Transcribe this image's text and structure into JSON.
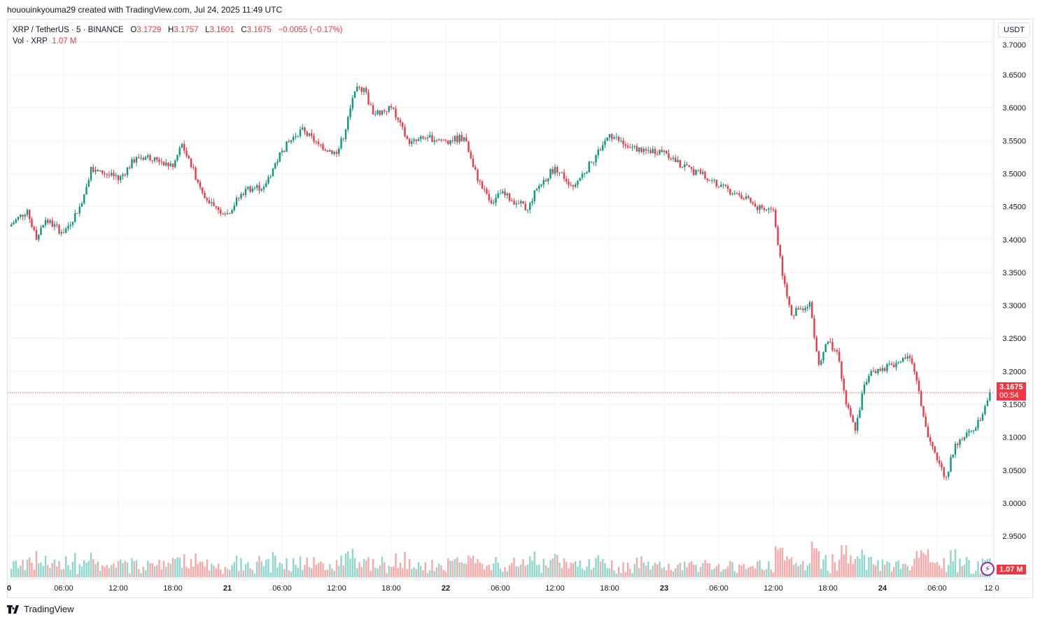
{
  "credit": "hououinkyouma29 created with TradingView.com, Jul 24, 2025 11:49 UTC",
  "legend": {
    "symbol": "XRP / TetherUS · 5 · BINANCE",
    "o_label": "O",
    "o": "3.1729",
    "h_label": "H",
    "h": "3.1757",
    "l_label": "L",
    "l": "3.1601",
    "c_label": "C",
    "c": "3.1675",
    "change": "−0.0055 (−0.17%)",
    "vol_label": "Vol · XRP",
    "vol": "1.07 M"
  },
  "currency_button": "USDT",
  "last_price_tag": {
    "price": "3.1675",
    "countdown": "00:54"
  },
  "volume_tag": "1.07 M",
  "footer_brand": "TradingView",
  "colors": {
    "up": "#089981",
    "down": "#f23645",
    "up_volume": "#8fd6cc",
    "down_volume": "#f7a9a7",
    "grid": "#f0f3fa"
  },
  "chart_data": {
    "type": "candlestick",
    "interval": "5 minutes",
    "note_x": "hours from Jul 20 00:00 UTC",
    "y_ticks": [
      "2.9500",
      "3.0000",
      "3.0500",
      "3.1000",
      "3.1500",
      "3.2000",
      "3.2500",
      "3.3000",
      "3.3500",
      "3.4000",
      "3.4500",
      "3.5000",
      "3.5500",
      "3.6000",
      "3.6500",
      "3.7000"
    ],
    "ylim": [
      2.94,
      3.71
    ],
    "x_ticks": [
      {
        "t": 0,
        "label": "0"
      },
      {
        "t": 6,
        "label": "06:00"
      },
      {
        "t": 12,
        "label": "12:00"
      },
      {
        "t": 18,
        "label": "18:00"
      },
      {
        "t": 24,
        "label": "21"
      },
      {
        "t": 30,
        "label": "06:00"
      },
      {
        "t": 36,
        "label": "12:00"
      },
      {
        "t": 42,
        "label": "18:00"
      },
      {
        "t": 48,
        "label": "22"
      },
      {
        "t": 54,
        "label": "06:00"
      },
      {
        "t": 60,
        "label": "12:00"
      },
      {
        "t": 66,
        "label": "18:00"
      },
      {
        "t": 72,
        "label": "23"
      },
      {
        "t": 78,
        "label": "06:00"
      },
      {
        "t": 84,
        "label": "12:00"
      },
      {
        "t": 90,
        "label": "18:00"
      },
      {
        "t": 96,
        "label": "24"
      },
      {
        "t": 102,
        "label": "06:00"
      },
      {
        "t": 108,
        "label": "12:0"
      }
    ],
    "close": [
      [
        0,
        3.42
      ],
      [
        2,
        3.445
      ],
      [
        3,
        3.4
      ],
      [
        4,
        3.43
      ],
      [
        6,
        3.41
      ],
      [
        8,
        3.455
      ],
      [
        9,
        3.51
      ],
      [
        10,
        3.505
      ],
      [
        12,
        3.49
      ],
      [
        14,
        3.525
      ],
      [
        16,
        3.525
      ],
      [
        18,
        3.51
      ],
      [
        19,
        3.545
      ],
      [
        20,
        3.51
      ],
      [
        22,
        3.455
      ],
      [
        23,
        3.445
      ],
      [
        24,
        3.44
      ],
      [
        26,
        3.477
      ],
      [
        28,
        3.48
      ],
      [
        30,
        3.535
      ],
      [
        32,
        3.567
      ],
      [
        34,
        3.545
      ],
      [
        36,
        3.53
      ],
      [
        37,
        3.567
      ],
      [
        38,
        3.625
      ],
      [
        39,
        3.63
      ],
      [
        40,
        3.59
      ],
      [
        42,
        3.6
      ],
      [
        44,
        3.545
      ],
      [
        46,
        3.555
      ],
      [
        48,
        3.55
      ],
      [
        50,
        3.555
      ],
      [
        51,
        3.51
      ],
      [
        52,
        3.477
      ],
      [
        53,
        3.455
      ],
      [
        54,
        3.47
      ],
      [
        56,
        3.455
      ],
      [
        57,
        3.445
      ],
      [
        58,
        3.477
      ],
      [
        60,
        3.51
      ],
      [
        62,
        3.48
      ],
      [
        64,
        3.517
      ],
      [
        66,
        3.56
      ],
      [
        68,
        3.54
      ],
      [
        70,
        3.535
      ],
      [
        72,
        3.535
      ],
      [
        74,
        3.51
      ],
      [
        76,
        3.5
      ],
      [
        78,
        3.48
      ],
      [
        80,
        3.47
      ],
      [
        82,
        3.45
      ],
      [
        84,
        3.445
      ],
      [
        85,
        3.345
      ],
      [
        86,
        3.285
      ],
      [
        87,
        3.295
      ],
      [
        88,
        3.305
      ],
      [
        89,
        3.21
      ],
      [
        90,
        3.245
      ],
      [
        91,
        3.23
      ],
      [
        92,
        3.15
      ],
      [
        93,
        3.11
      ],
      [
        94,
        3.18
      ],
      [
        95,
        3.2
      ],
      [
        96,
        3.205
      ],
      [
        98,
        3.215
      ],
      [
        99,
        3.22
      ],
      [
        100,
        3.17
      ],
      [
        101,
        3.1
      ],
      [
        102,
        3.065
      ],
      [
        103,
        3.04
      ],
      [
        104,
        3.09
      ],
      [
        105,
        3.1
      ],
      [
        106,
        3.11
      ],
      [
        107,
        3.135
      ],
      [
        107.8,
        3.1675
      ]
    ],
    "last_price": 3.1675
  }
}
